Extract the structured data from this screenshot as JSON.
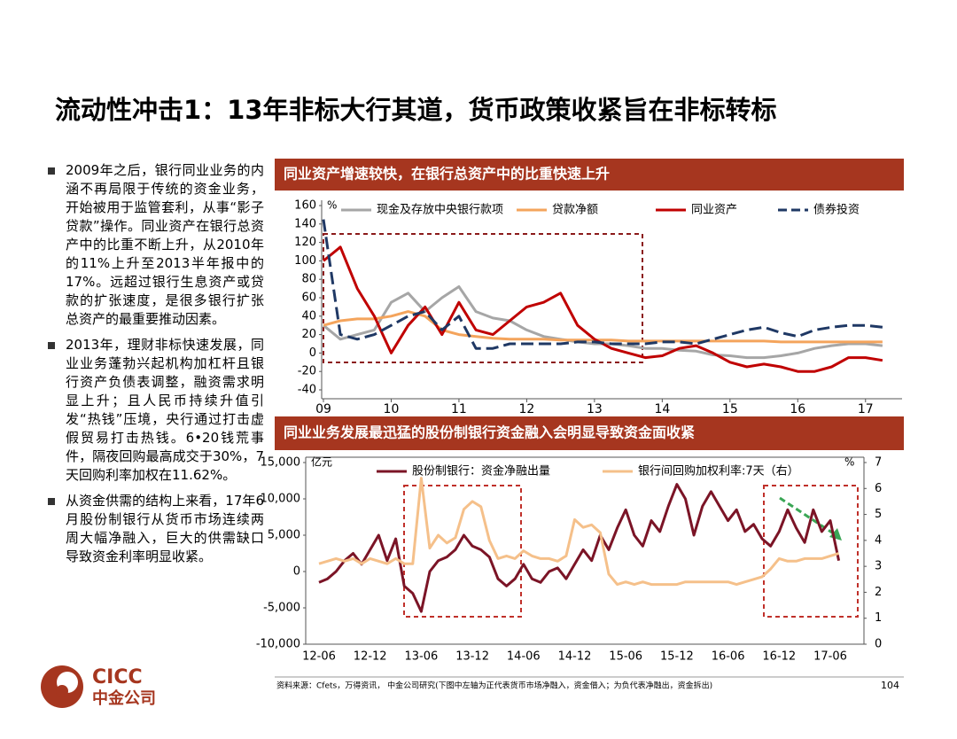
{
  "title": "流动性冲击1：13年非标大行其道，货币政策收紧旨在非标转标",
  "bullets": [
    "2009年之后，银行同业业务的内涵不再局限于传统的资金业务，开始被用于监管套利，从事“影子贷款”操作。同业资产在银行总资产中的比重不断上升，从2010年的11%上升至2013半年报中的17%。远超过银行生息资产或贷款的扩张速度，是很多银行扩张总资产的最重要推动因素。",
    "2013年，理财非标快速发展，同业业务蓬勃兴起机构加杠杆且银行资产负债表调整，融资需求明显上升；且人民币持续升值引发“热钱”压境，央行通过打击虚假贸易打击热钱。6•20钱荒事件，隔夜回购最高成交于30%，7天回购利率加权在11.62%。",
    "从资金供需的结构上来看，17年6月股份制银行从货币市场连续两周大幅净融入，巨大的供需缺口导致资金利率明显收紧。"
  ],
  "chart_data": [
    {
      "type": "line",
      "title": "同业资产增速较快，在银行总资产中的比重快速上升",
      "y_unit": "%",
      "x": [
        2009,
        2009.25,
        2009.5,
        2009.75,
        2010,
        2010.25,
        2010.5,
        2010.75,
        2011,
        2011.25,
        2011.5,
        2011.75,
        2012,
        2012.25,
        2012.5,
        2012.75,
        2013,
        2013.25,
        2013.5,
        2013.75,
        2014,
        2014.25,
        2014.5,
        2014.75,
        2015,
        2015.25,
        2015.5,
        2015.75,
        2016,
        2016.25,
        2016.5,
        2016.75,
        2017,
        2017.25
      ],
      "xlim": [
        2009,
        2017.5
      ],
      "xticks": [
        {
          "value": 2009,
          "label": "09"
        },
        {
          "value": 2010,
          "label": "10"
        },
        {
          "value": 2011,
          "label": "11"
        },
        {
          "value": 2012,
          "label": "12"
        },
        {
          "value": 2013,
          "label": "13"
        },
        {
          "value": 2014,
          "label": "14"
        },
        {
          "value": 2015,
          "label": "15"
        },
        {
          "value": 2016,
          "label": "16"
        },
        {
          "value": 2017,
          "label": "17"
        }
      ],
      "ylim": [
        -40,
        160
      ],
      "yticks": [
        -40,
        -20,
        0,
        20,
        40,
        60,
        80,
        100,
        120,
        140,
        160
      ],
      "legend": "top",
      "series": [
        {
          "name": "现金及存放中央银行款项",
          "color": "#a6a6a6",
          "values": [
            30,
            15,
            20,
            25,
            55,
            65,
            45,
            60,
            72,
            45,
            38,
            35,
            25,
            18,
            15,
            12,
            10,
            10,
            8,
            5,
            5,
            3,
            2,
            -2,
            -3,
            -5,
            -5,
            -3,
            0,
            5,
            8,
            10,
            10,
            8
          ]
        },
        {
          "name": "贷款净额",
          "color": "#f4a45c",
          "values": [
            30,
            35,
            37,
            37,
            40,
            45,
            40,
            25,
            20,
            18,
            16,
            15,
            15,
            15,
            14,
            14,
            14,
            14,
            13,
            13,
            13,
            13,
            13,
            13,
            13,
            13,
            13,
            12,
            12,
            12,
            12,
            12,
            12,
            12
          ]
        },
        {
          "name": "同业资产",
          "color": "#c00000",
          "values": [
            100,
            115,
            70,
            40,
            0,
            30,
            50,
            20,
            55,
            25,
            20,
            35,
            50,
            55,
            65,
            30,
            15,
            5,
            0,
            -5,
            -3,
            5,
            8,
            0,
            -10,
            -15,
            -12,
            -15,
            -20,
            -20,
            -15,
            -5,
            -5,
            -8
          ]
        },
        {
          "name": "债券投资",
          "color": "#1f3864",
          "dash": true,
          "values": [
            145,
            20,
            15,
            20,
            30,
            40,
            45,
            25,
            40,
            5,
            5,
            10,
            10,
            10,
            10,
            12,
            12,
            10,
            10,
            10,
            12,
            12,
            10,
            15,
            20,
            25,
            28,
            22,
            18,
            25,
            28,
            30,
            30,
            28
          ]
        }
      ]
    },
    {
      "type": "line",
      "title": "同业业务发展最迅猛的股份制银行资金融入会明显导致资金面收紧",
      "y_unit": "亿元",
      "y2_unit": "%",
      "categories": [
        "12-06",
        null,
        null,
        null,
        null,
        null,
        "12-12",
        null,
        null,
        null,
        null,
        null,
        "13-06",
        null,
        null,
        null,
        null,
        null,
        "13-12",
        null,
        null,
        null,
        null,
        null,
        "14-06",
        null,
        null,
        null,
        null,
        null,
        "14-12",
        null,
        null,
        null,
        null,
        null,
        "15-06",
        null,
        null,
        null,
        null,
        null,
        "15-12",
        null,
        null,
        null,
        null,
        null,
        "16-06",
        null,
        null,
        null,
        null,
        null,
        "16-12",
        null,
        null,
        null,
        null,
        null,
        "17-06",
        null
      ],
      "ylim": [
        -10000,
        15000
      ],
      "yticks": [
        {
          "value": -10000,
          "label": "-10,000"
        },
        {
          "value": -5000,
          "label": "-5,000"
        },
        0,
        {
          "value": 5000,
          "label": "5,000"
        },
        {
          "value": 10000,
          "label": "10,000"
        },
        {
          "value": 15000,
          "label": "15,000"
        }
      ],
      "y2lim": [
        0,
        7
      ],
      "y2ticks": [
        0,
        1,
        2,
        3,
        4,
        5,
        6,
        7
      ],
      "legend": "top",
      "series": [
        {
          "name": "股份制银行：资金净融出量",
          "color": "#7b1426",
          "values": [
            -1500,
            -1000,
            0,
            1500,
            2500,
            1000,
            3000,
            5000,
            1500,
            4500,
            -2000,
            -3000,
            -5500,
            0,
            1500,
            2000,
            3000,
            5000,
            3500,
            3000,
            2000,
            -1000,
            -2000,
            -1000,
            1000,
            -1000,
            -1500,
            0,
            500,
            -1000,
            1000,
            3000,
            1500,
            5000,
            3000,
            6000,
            8500,
            5000,
            3500,
            7000,
            5500,
            9000,
            12000,
            10000,
            5000,
            9000,
            11000,
            9000,
            7000,
            8500,
            5500,
            6500,
            4500,
            3500,
            5500,
            8500,
            6000,
            4000,
            8500,
            5500,
            7000,
            1500
          ]
        },
        {
          "name": "银行间回购加权利率:7天（右）",
          "color": "#f5c08a",
          "axis": "y2",
          "values": [
            3.1,
            3.2,
            3.3,
            3.2,
            3.3,
            3.1,
            3.3,
            3.2,
            3.1,
            3.3,
            3.1,
            3.1,
            6.4,
            3.7,
            4.2,
            3.9,
            4.1,
            5.2,
            5.5,
            5.3,
            4.0,
            3.3,
            3.4,
            3.3,
            3.6,
            3.4,
            3.3,
            3.3,
            3.2,
            3.4,
            4.8,
            4.5,
            4.6,
            4.3,
            2.7,
            2.3,
            2.4,
            2.3,
            2.4,
            2.3,
            2.3,
            2.3,
            2.3,
            2.4,
            2.4,
            2.4,
            2.4,
            2.4,
            2.4,
            2.3,
            2.4,
            2.5,
            2.6,
            2.9,
            3.3,
            3.2,
            3.2,
            3.3,
            3.3,
            3.3,
            3.4,
            3.5
          ]
        }
      ]
    }
  ],
  "source": "资料来源：Cfets，万得资讯， 中金公司研究(下图中左轴为正代表货币市场净融入，资金借入；为负代表净融出，资金拆出)",
  "page_number": "104",
  "logo": {
    "en": "CICC",
    "cn": "中金公司"
  }
}
